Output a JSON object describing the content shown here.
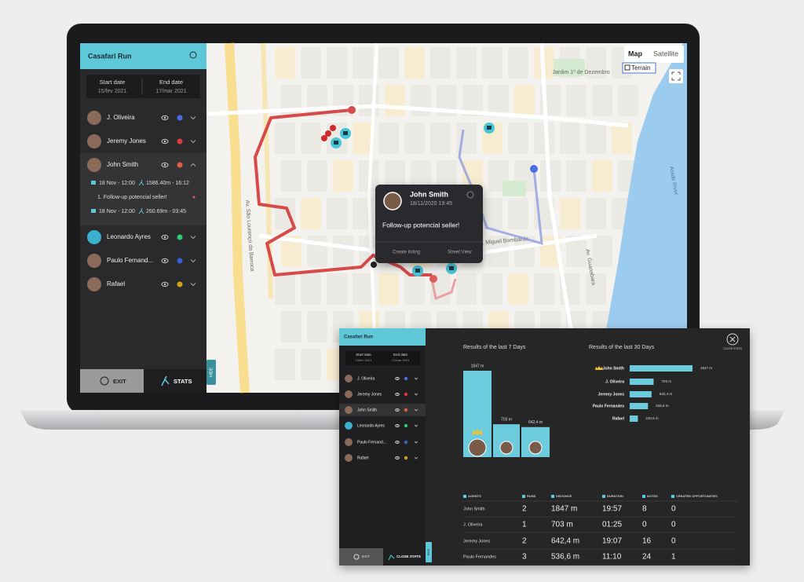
{
  "app": {
    "title": "Casafari Run",
    "start_label": "Start date",
    "start": "15/fev 2021",
    "end_label": "End date",
    "end": "17/mar 2021",
    "agents": [
      {
        "name": "J. Oliveira",
        "color": "#4a6fe3"
      },
      {
        "name": "Jeremy Jones",
        "color": "#e03a3a"
      },
      {
        "name": "John Smith",
        "color": "#e0603e"
      },
      {
        "name": "Leonardo Ayres",
        "color": "#2ecc71"
      },
      {
        "name": "Paulo Fernand...",
        "color": "#3a5fd0"
      },
      {
        "name": "Rafael",
        "color": "#d4a017"
      }
    ],
    "runs": [
      {
        "date": "18 Nov - 12:00",
        "stats": "1586.40m - 16:12"
      },
      {
        "date": "18 Nov - 12:00",
        "stats": "260.69m - 03:45"
      }
    ],
    "note": "1. Follow-up potencial seller!",
    "exit": "EXIT",
    "stats": "STATS",
    "hide": "HIDE"
  },
  "map": {
    "tabs": [
      "Map",
      "Satellite"
    ],
    "terrain": "Terrain",
    "labels": [
      "Av. São Lourenço da Barroca",
      "Jardim 1º de Dezembro",
      "Av. Miguel Bombarda",
      "Av. Guanabara",
      "Arade River"
    ]
  },
  "popup": {
    "name": "John Smith",
    "date": "18/11/2020 19:45",
    "message": "Follow-up potencial seller!",
    "actions": [
      "Create listing",
      "Street View"
    ]
  },
  "stats": {
    "close": "CLOSE STATS",
    "week_chart": {
      "type": "bar",
      "title": "Results of the last 7 Days",
      "values": [
        1847,
        703,
        642.4
      ],
      "value_labels": [
        "1847 m",
        "703 m",
        "642,4 m"
      ],
      "color": "#6ccbdc"
    },
    "month_chart": {
      "type": "bar",
      "title": "Results of the last 30 Days",
      "categories": [
        "John Smith",
        "J. Oliveira",
        "Jeremy Jones",
        "Paulo Fernandes",
        "Rafael"
      ],
      "values": [
        1847,
        703,
        642.4,
        536.6,
        240.6
      ],
      "value_labels": [
        "1847 m",
        "703 m",
        "642,4 m",
        "536,6 m",
        "240,6 m"
      ],
      "color": "#6ccbdc"
    },
    "table": {
      "headers": [
        "AGENTS",
        "RUNS",
        "DISTANCE",
        "DURATION",
        "NOTES",
        "CREATED OPPORTUNITIES"
      ],
      "rows": [
        [
          "John Smith",
          "2",
          "1847 m",
          "19:57",
          "8",
          "0"
        ],
        [
          "J. Oliveira",
          "1",
          "703 m",
          "01:25",
          "0",
          "0"
        ],
        [
          "Jeremy Jones",
          "2",
          "642,4 m",
          "19:07",
          "16",
          "0"
        ],
        [
          "Paulo Fernandes",
          "3",
          "536,6 m",
          "11:10",
          "24",
          "1"
        ]
      ]
    }
  }
}
